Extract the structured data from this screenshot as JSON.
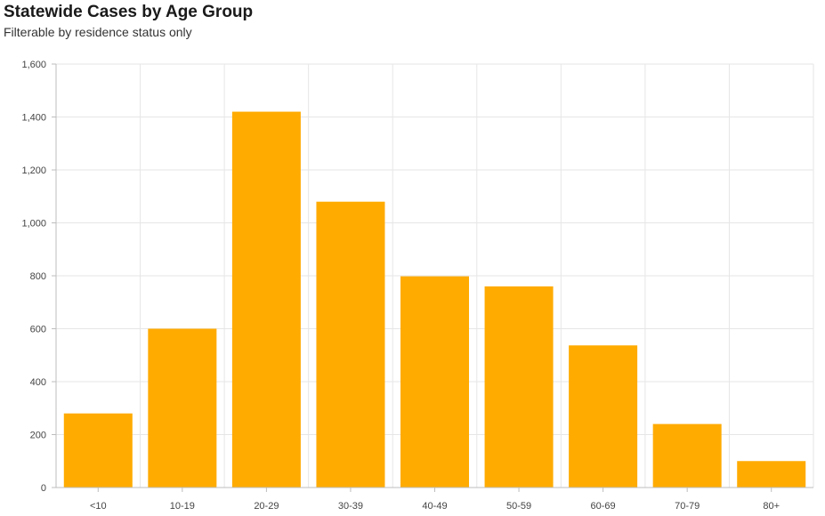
{
  "chart": {
    "title": "Statewide Cases by Age Group",
    "subtitle": "Filterable by residence status only"
  },
  "chart_data": {
    "type": "bar",
    "title": "Statewide Cases by Age Group",
    "subtitle": "Filterable by residence status only",
    "categories": [
      "<10",
      "10-19",
      "20-29",
      "30-39",
      "40-49",
      "50-59",
      "60-69",
      "70-79",
      "80+"
    ],
    "values": [
      280,
      600,
      1420,
      1080,
      798,
      760,
      537,
      240,
      100
    ],
    "xlabel": "",
    "ylabel": "",
    "ylim": [
      0,
      1600
    ],
    "yticks": [
      0,
      200,
      400,
      600,
      800,
      1000,
      1200,
      1400,
      1600
    ],
    "ytick_labels": [
      "0",
      "200",
      "400",
      "600",
      "800",
      "1,000",
      "1,200",
      "1,400",
      "1,600"
    ],
    "grid": true,
    "legend": "none",
    "bar_color": "#ffab00",
    "grid_color": "#e6e6e6",
    "axis_color": "#bdbdbd"
  }
}
